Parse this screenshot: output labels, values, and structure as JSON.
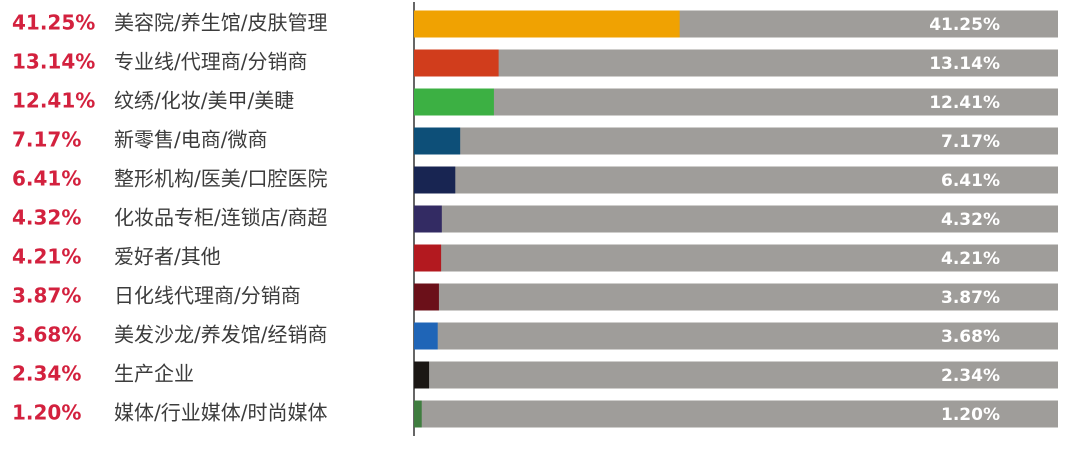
{
  "chart_data": {
    "type": "bar",
    "orientation": "horizontal",
    "categories": [
      "美容院/养生馆/皮肤管理",
      "专业线/代理商/分销商",
      "纹绣/化妆/美甲/美睫",
      "新零售/电商/微商",
      "整形机构/医美/口腔医院",
      "化妆品专柜/连锁店/商超",
      "爱好者/其他",
      "日化线代理商/分销商",
      "美发沙龙/养发馆/经销商",
      "生产企业",
      "媒体/行业媒体/时尚媒体"
    ],
    "values": [
      41.25,
      13.14,
      12.41,
      7.17,
      6.41,
      4.32,
      4.21,
      3.87,
      3.68,
      2.34,
      1.2
    ],
    "value_labels": [
      "41.25%",
      "13.14%",
      "12.41%",
      "7.17%",
      "6.41%",
      "4.32%",
      "4.21%",
      "3.87%",
      "3.68%",
      "2.34%",
      "1.20%"
    ],
    "xlim": [
      0,
      100
    ],
    "grid": false,
    "colors": {
      "bars": [
        "#f0a202",
        "#d13d1c",
        "#3cb043",
        "#0d4f78",
        "#182552",
        "#332b63",
        "#b3191f",
        "#6b1019",
        "#1f65b7",
        "#1b1714",
        "#3f7d3f"
      ],
      "track": "#9f9d9a",
      "percent_text": "#d3213e",
      "category_text": "#3c3c3c",
      "track_label_text": "#ffffff",
      "axis_line": "#333333"
    }
  }
}
